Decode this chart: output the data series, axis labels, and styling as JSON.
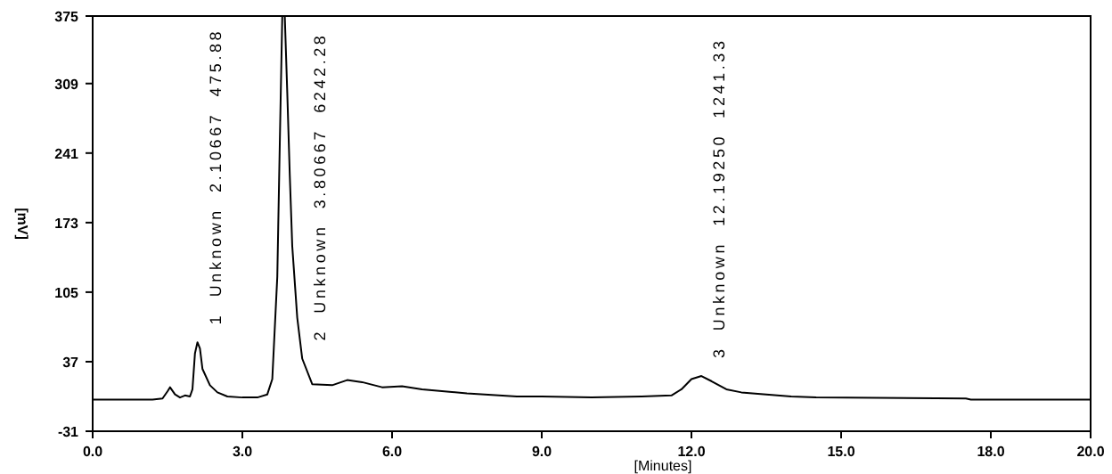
{
  "chart_data": {
    "type": "line",
    "xlabel": "[Minutes]",
    "ylabel": "[mV]",
    "x": [
      0,
      1.2,
      1.4,
      1.5,
      1.55,
      1.65,
      1.75,
      1.85,
      1.95,
      2.0,
      2.05,
      2.1,
      2.15,
      2.2,
      2.35,
      2.5,
      2.7,
      3.0,
      3.3,
      3.5,
      3.6,
      3.7,
      3.75,
      3.8,
      3.85,
      3.9,
      3.95,
      4.0,
      4.1,
      4.2,
      4.4,
      4.8,
      5.1,
      5.4,
      5.8,
      6.2,
      6.6,
      7.5,
      8.5,
      9,
      10,
      11,
      11.6,
      11.8,
      12.0,
      12.2,
      12.4,
      12.7,
      13,
      13.5,
      14,
      14.5,
      17.5,
      17.6,
      20
    ],
    "series": [
      {
        "color": "#000000",
        "values": [
          0,
          0,
          1,
          8,
          12,
          5,
          2,
          4,
          3,
          10,
          45,
          56,
          50,
          30,
          14,
          7,
          3,
          2,
          2,
          5,
          20,
          120,
          250,
          375,
          375,
          300,
          220,
          150,
          80,
          40,
          15,
          14,
          19,
          17,
          12,
          13,
          10,
          6,
          3,
          3,
          2,
          3,
          4,
          10,
          20,
          23,
          18,
          10,
          7,
          5,
          3,
          2,
          1,
          0,
          0
        ]
      }
    ],
    "xlim": [
      0,
      20
    ],
    "xticks": [
      {
        "value": 0,
        "label": "0.0"
      },
      {
        "value": 3,
        "label": "3.0"
      },
      {
        "value": 6,
        "label": "6.0"
      },
      {
        "value": 9,
        "label": "9.0"
      },
      {
        "value": 12,
        "label": "12.0"
      },
      {
        "value": 15,
        "label": "15.0"
      },
      {
        "value": 18,
        "label": "18.0"
      },
      {
        "value": 20,
        "label": "20.0"
      }
    ],
    "ylim": [
      -31,
      375
    ],
    "yticks": [
      -31,
      37,
      105,
      173,
      241,
      309,
      375
    ],
    "grid": false,
    "line_style": "solid",
    "annotations": [
      {
        "text": "1  Unknown  2.10667  475.88",
        "x": 2.1,
        "y": 56
      },
      {
        "text": "2  Unknown  3.80667  6242.28",
        "x": 4.2,
        "y": 40
      },
      {
        "text": "3  Unknown  12.19250  1241.33",
        "x": 12.2,
        "y": 23
      }
    ]
  }
}
